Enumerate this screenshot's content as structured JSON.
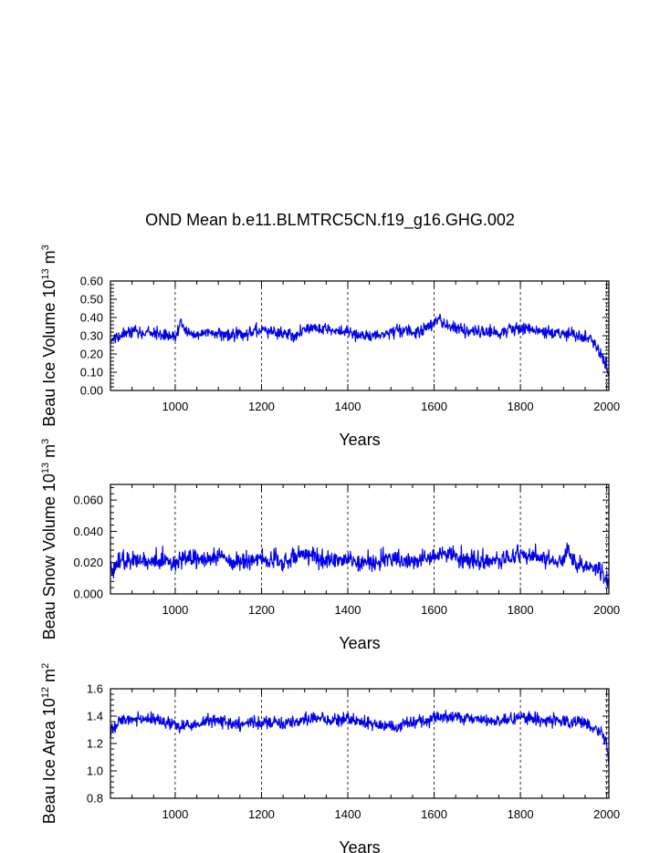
{
  "figure": {
    "title": "OND Mean b.e11.BLMTRC5CN.f19_g16.GHG.002"
  },
  "chart_data": [
    {
      "type": "line",
      "title": "OND Mean b.e11.BLMTRC5CN.f19_g16.GHG.002",
      "ylabel_main": "Beau Ice Volume 10",
      "ylabel_exp1": "13",
      "ylabel_unit": " m",
      "ylabel_exp2": "3",
      "xlabel": "Years",
      "xlim": [
        850,
        2005
      ],
      "ylim": [
        0.0,
        0.6
      ],
      "yticks": [
        0.0,
        0.1,
        0.2,
        0.3,
        0.4,
        0.5,
        0.6
      ],
      "ytick_labels": [
        "0.00",
        "0.10",
        "0.20",
        "0.30",
        "0.40",
        "0.50",
        "0.60"
      ],
      "xticks": [
        1000,
        1200,
        1400,
        1600,
        1800,
        2000
      ],
      "xtick_labels": [
        "1000",
        "1200",
        "1400",
        "1600",
        "1800",
        "2000"
      ],
      "vlines": [
        1000,
        1200,
        1400,
        1600,
        1800,
        2000
      ],
      "line_color": "#0000ee",
      "series": [
        {
          "name": "Beau Ice Volume",
          "x": [
            850,
            875,
            900,
            925,
            950,
            975,
            1000,
            1013,
            1025,
            1050,
            1075,
            1100,
            1125,
            1150,
            1175,
            1200,
            1225,
            1250,
            1275,
            1300,
            1325,
            1350,
            1375,
            1400,
            1425,
            1450,
            1475,
            1500,
            1525,
            1550,
            1575,
            1600,
            1613,
            1625,
            1650,
            1675,
            1700,
            1725,
            1750,
            1775,
            1800,
            1825,
            1850,
            1875,
            1900,
            1925,
            1950,
            1965,
            1975,
            1985,
            1995,
            2005
          ],
          "y": [
            0.27,
            0.3,
            0.33,
            0.31,
            0.32,
            0.3,
            0.29,
            0.38,
            0.33,
            0.31,
            0.32,
            0.31,
            0.3,
            0.31,
            0.32,
            0.33,
            0.32,
            0.31,
            0.3,
            0.34,
            0.35,
            0.34,
            0.33,
            0.32,
            0.3,
            0.29,
            0.31,
            0.32,
            0.33,
            0.32,
            0.33,
            0.37,
            0.4,
            0.36,
            0.34,
            0.33,
            0.33,
            0.32,
            0.31,
            0.33,
            0.34,
            0.33,
            0.32,
            0.31,
            0.31,
            0.3,
            0.29,
            0.27,
            0.24,
            0.2,
            0.16,
            0.09
          ]
        }
      ]
    },
    {
      "type": "line",
      "ylabel_main": "Beau Snow Volume 10",
      "ylabel_exp1": "13",
      "ylabel_unit": " m",
      "ylabel_exp2": "3",
      "xlabel": "Years",
      "xlim": [
        850,
        2005
      ],
      "ylim": [
        0.0,
        0.07
      ],
      "yticks": [
        0.0,
        0.02,
        0.04,
        0.06
      ],
      "ytick_labels": [
        "0.000",
        "0.020",
        "0.040",
        "0.060"
      ],
      "xticks": [
        1000,
        1200,
        1400,
        1600,
        1800,
        2000
      ],
      "xtick_labels": [
        "1000",
        "1200",
        "1400",
        "1600",
        "1800",
        "2000"
      ],
      "vlines": [
        1000,
        1200,
        1400,
        1600,
        1800,
        2000
      ],
      "line_color": "#0000ee",
      "series": [
        {
          "name": "Beau Snow Volume",
          "x": [
            850,
            875,
            900,
            925,
            950,
            975,
            1000,
            1025,
            1050,
            1075,
            1100,
            1125,
            1150,
            1175,
            1200,
            1225,
            1250,
            1275,
            1300,
            1325,
            1350,
            1375,
            1400,
            1425,
            1450,
            1475,
            1500,
            1525,
            1550,
            1575,
            1600,
            1625,
            1650,
            1675,
            1700,
            1725,
            1750,
            1775,
            1800,
            1825,
            1850,
            1875,
            1900,
            1910,
            1925,
            1950,
            1975,
            1990,
            2005
          ],
          "y": [
            0.014,
            0.02,
            0.022,
            0.021,
            0.02,
            0.021,
            0.019,
            0.023,
            0.021,
            0.022,
            0.024,
            0.02,
            0.019,
            0.021,
            0.022,
            0.021,
            0.02,
            0.023,
            0.026,
            0.022,
            0.021,
            0.02,
            0.022,
            0.02,
            0.019,
            0.021,
            0.022,
            0.021,
            0.02,
            0.022,
            0.024,
            0.025,
            0.023,
            0.022,
            0.02,
            0.021,
            0.022,
            0.023,
            0.025,
            0.024,
            0.022,
            0.02,
            0.021,
            0.03,
            0.019,
            0.018,
            0.016,
            0.013,
            0.008
          ]
        }
      ]
    },
    {
      "type": "line",
      "ylabel_main": "Beau Ice Area 10",
      "ylabel_exp1": "12",
      "ylabel_unit": " m",
      "ylabel_exp2": "2",
      "xlabel": "Years",
      "xlim": [
        850,
        2005
      ],
      "ylim": [
        0.8,
        1.6
      ],
      "yticks": [
        0.8,
        1.0,
        1.2,
        1.4,
        1.6
      ],
      "ytick_labels": [
        "0.8",
        "1.0",
        "1.2",
        "1.4",
        "1.6"
      ],
      "xticks": [
        1000,
        1200,
        1400,
        1600,
        1800,
        2000
      ],
      "xtick_labels": [
        "1000",
        "1200",
        "1400",
        "1600",
        "1800",
        "2000"
      ],
      "vlines": [
        1000,
        1200,
        1400,
        1600,
        1800,
        2000
      ],
      "line_color": "#0000ee",
      "series": [
        {
          "name": "Beau Ice Area",
          "x": [
            850,
            875,
            900,
            925,
            950,
            975,
            1000,
            1025,
            1050,
            1075,
            1100,
            1125,
            1150,
            1175,
            1200,
            1225,
            1250,
            1275,
            1300,
            1325,
            1350,
            1375,
            1400,
            1425,
            1450,
            1475,
            1500,
            1515,
            1525,
            1550,
            1575,
            1600,
            1625,
            1650,
            1675,
            1700,
            1725,
            1750,
            1775,
            1800,
            1825,
            1850,
            1875,
            1900,
            1925,
            1950,
            1975,
            1990,
            2000,
            2005
          ],
          "y": [
            1.3,
            1.36,
            1.38,
            1.37,
            1.38,
            1.36,
            1.33,
            1.33,
            1.34,
            1.36,
            1.37,
            1.35,
            1.34,
            1.36,
            1.35,
            1.36,
            1.34,
            1.35,
            1.38,
            1.39,
            1.38,
            1.37,
            1.38,
            1.36,
            1.35,
            1.34,
            1.33,
            1.29,
            1.35,
            1.36,
            1.36,
            1.38,
            1.4,
            1.39,
            1.38,
            1.38,
            1.37,
            1.37,
            1.38,
            1.39,
            1.38,
            1.37,
            1.37,
            1.36,
            1.36,
            1.35,
            1.3,
            1.27,
            1.2,
            1.05
          ]
        }
      ]
    }
  ]
}
